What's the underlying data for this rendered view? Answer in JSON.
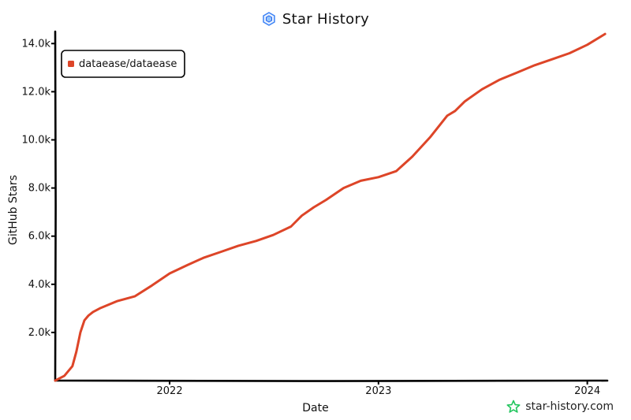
{
  "header": {
    "title": "Star History",
    "logo_icon": "star-history-logo-icon"
  },
  "watermark": {
    "text": "star-history.com",
    "icon": "star-icon",
    "icon_color": "#22c55e"
  },
  "chart_data": {
    "type": "line",
    "title": "Star History",
    "xlabel": "Date",
    "ylabel": "GitHub Stars",
    "x_ticks": [
      "2022",
      "2023",
      "2024"
    ],
    "y_ticks": [
      "2.0k",
      "4.0k",
      "6.0k",
      "8.0k",
      "10.0k",
      "12.0k",
      "14.0k"
    ],
    "y_tick_values": [
      2000,
      4000,
      6000,
      8000,
      10000,
      12000,
      14000
    ],
    "ylim": [
      0,
      14500
    ],
    "xlim": [
      "2021-06-15",
      "2024-02-05"
    ],
    "legend_position": "top-left",
    "grid": false,
    "series": [
      {
        "name": "dataease/dataease",
        "color": "#dd4528",
        "x": [
          "2021-06-15",
          "2021-07-01",
          "2021-07-15",
          "2021-07-22",
          "2021-07-29",
          "2021-08-05",
          "2021-08-12",
          "2021-08-20",
          "2021-09-01",
          "2021-10-01",
          "2021-11-01",
          "2021-12-01",
          "2022-01-01",
          "2022-02-01",
          "2022-03-01",
          "2022-04-01",
          "2022-05-01",
          "2022-06-01",
          "2022-07-01",
          "2022-08-01",
          "2022-08-20",
          "2022-09-10",
          "2022-10-01",
          "2022-11-01",
          "2022-12-01",
          "2023-01-01",
          "2023-02-01",
          "2023-03-01",
          "2023-04-01",
          "2023-05-01",
          "2023-05-15",
          "2023-06-01",
          "2023-07-01",
          "2023-08-01",
          "2023-09-01",
          "2023-10-01",
          "2023-11-01",
          "2023-12-01",
          "2024-01-01",
          "2024-02-01"
        ],
        "y": [
          0,
          200,
          600,
          1200,
          2000,
          2500,
          2700,
          2850,
          3000,
          3300,
          3500,
          3950,
          4450,
          4800,
          5100,
          5350,
          5600,
          5800,
          6050,
          6400,
          6850,
          7200,
          7500,
          8000,
          8300,
          8450,
          8700,
          9300,
          10100,
          11000,
          11200,
          11600,
          12100,
          12500,
          12800,
          13100,
          13350,
          13600,
          13950,
          14400
        ]
      }
    ]
  }
}
